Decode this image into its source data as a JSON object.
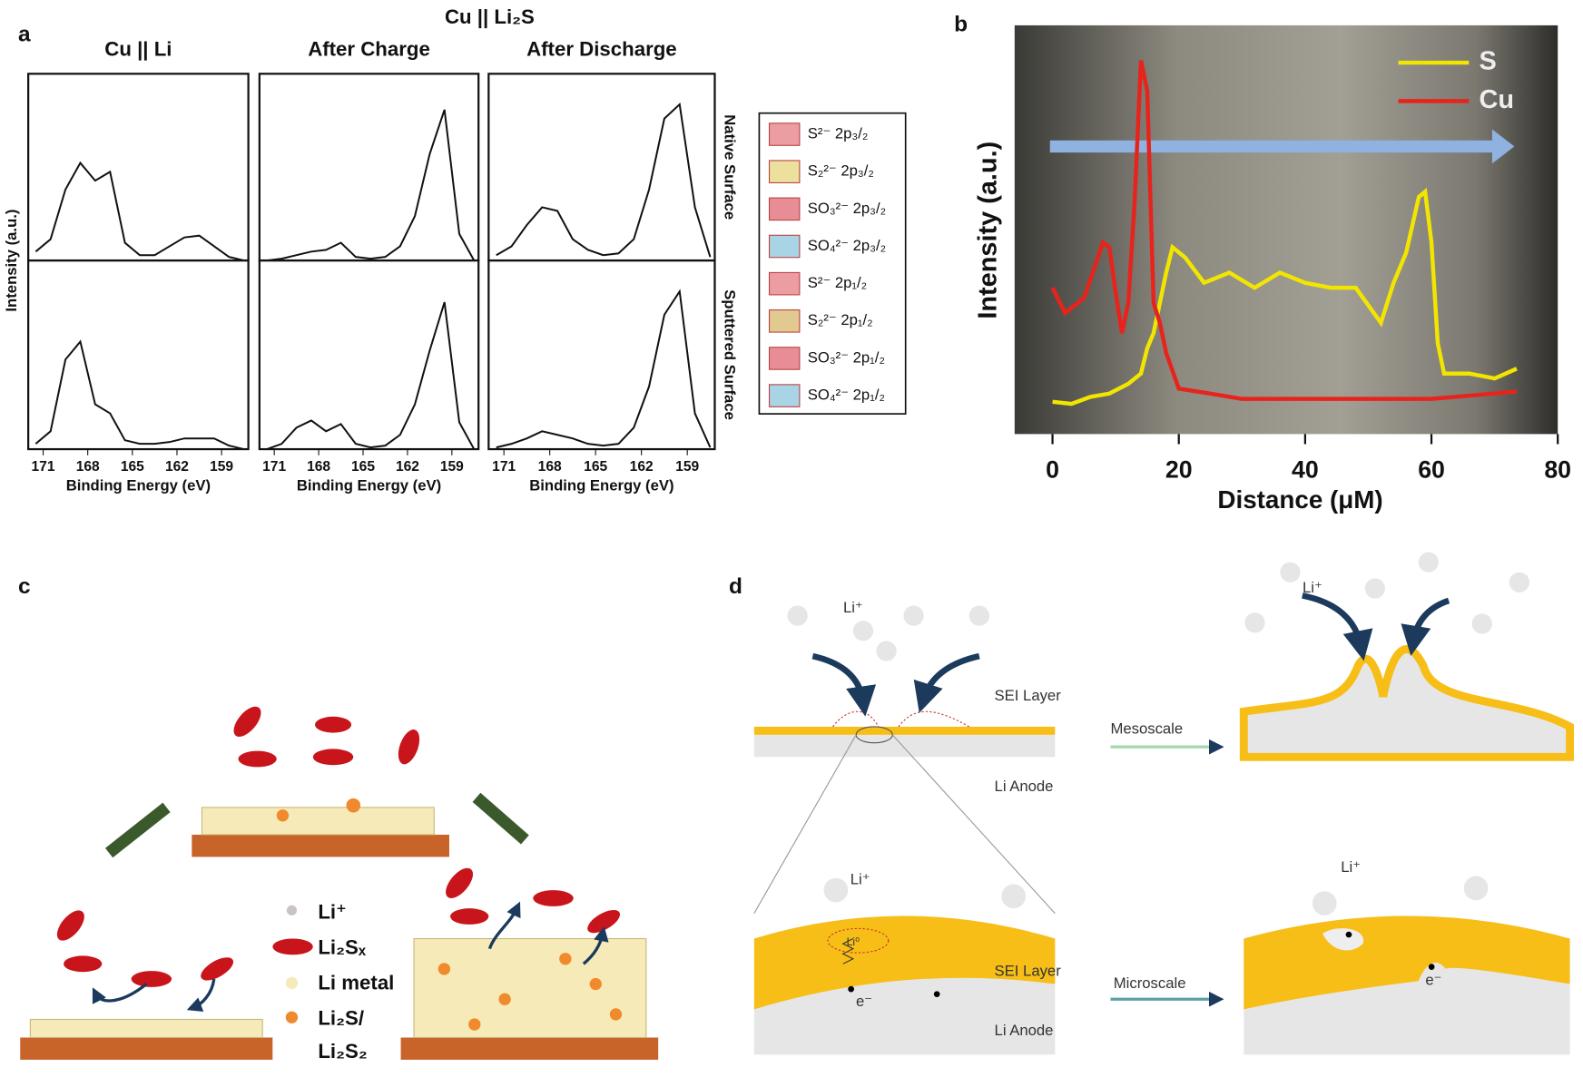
{
  "panel_labels": [
    "a",
    "b",
    "c",
    "d"
  ],
  "chart_data": [
    {
      "type": "line",
      "supertitle": "Cu || Li₂S",
      "column_titles": [
        "Cu || Li",
        "After Charge",
        "After Discharge"
      ],
      "row_labels": [
        "Native Surface",
        "Sputtered Surface"
      ],
      "x_label": "Binding Energy (eV)",
      "y_label": "Intensity (a.u.)",
      "xlim": [
        172,
        157.2
      ],
      "xticks": [
        171,
        168,
        165,
        162,
        159
      ],
      "ylim": [
        0,
        100
      ],
      "x": [
        171.5,
        170.5,
        169.5,
        168.5,
        167.5,
        166.5,
        165.5,
        164.5,
        163.5,
        162.5,
        161.5,
        160.5,
        159.5,
        158.5,
        157.5
      ],
      "series": [
        {
          "color": "#111111",
          "values": [
            5,
            12,
            40,
            55,
            45,
            50,
            10,
            3,
            3,
            8,
            13,
            14,
            8,
            2,
            0
          ]
        },
        {
          "color": "#111111",
          "values": [
            0,
            1,
            3,
            5,
            6,
            10,
            2,
            1,
            2,
            8,
            25,
            60,
            85,
            15,
            0
          ]
        },
        {
          "color": "#111111",
          "values": [
            3,
            8,
            20,
            30,
            28,
            12,
            6,
            3,
            4,
            12,
            40,
            80,
            88,
            30,
            2
          ]
        },
        {
          "color": "#111111",
          "values": [
            3,
            10,
            50,
            60,
            25,
            20,
            5,
            3,
            3,
            4,
            6,
            6,
            6,
            2,
            0
          ]
        },
        {
          "color": "#111111",
          "values": [
            0,
            3,
            12,
            16,
            10,
            14,
            3,
            1,
            2,
            8,
            25,
            55,
            82,
            15,
            0
          ]
        },
        {
          "color": "#111111",
          "values": [
            1,
            3,
            6,
            10,
            8,
            6,
            3,
            2,
            3,
            12,
            35,
            75,
            88,
            20,
            1
          ]
        }
      ],
      "legend": [
        {
          "name": "S²⁻ 2p₃/₂",
          "color": "#ec9da2"
        },
        {
          "name": "S₂²⁻ 2p₃/₂",
          "color": "#ece09c"
        },
        {
          "name": "SO₃²⁻ 2p₃/₂",
          "color": "#e88d95"
        },
        {
          "name": "SO₄²⁻ 2p₃/₂",
          "color": "#a9d4e6"
        },
        {
          "name": "S²⁻ 2p₁/₂",
          "color": "#ec9da2"
        },
        {
          "name": "S₂²⁻ 2p₁/₂",
          "color": "#e2c98f"
        },
        {
          "name": "SO₃²⁻ 2p₁/₂",
          "color": "#e88d95"
        },
        {
          "name": "SO₄²⁻ 2p₁/₂",
          "color": "#a9d4e6"
        }
      ]
    },
    {
      "type": "line",
      "x_label": "Distance (μM)",
      "y_label": "Intensity (a.u.)",
      "xlim": [
        -6,
        80
      ],
      "xticks": [
        0,
        20,
        40,
        60,
        80
      ],
      "ylim": [
        0,
        100
      ],
      "series": [
        {
          "name": "S",
          "color": "#f2e600",
          "x": [
            0,
            3,
            6,
            9,
            12,
            14,
            15,
            16,
            17,
            18,
            19,
            21,
            24,
            28,
            32,
            36,
            40,
            44,
            48,
            52,
            54,
            56,
            58,
            59,
            60,
            61,
            62,
            66,
            70,
            73.5
          ],
          "values": [
            7.9,
            7.4,
            9.1,
            9.9,
            12.3,
            14.8,
            21,
            24.7,
            32.1,
            39.5,
            45.7,
            43.2,
            37,
            39.5,
            35.8,
            39.5,
            37,
            35.8,
            35.8,
            27.2,
            37,
            44.4,
            58,
            59.3,
            46.9,
            22.2,
            14.8,
            14.8,
            13.6,
            16
          ]
        },
        {
          "name": "Cu",
          "color": "#e8231c",
          "x": [
            0,
            2,
            5,
            8,
            9,
            10,
            11,
            12,
            13,
            14,
            15,
            16,
            17,
            18,
            20,
            25,
            30,
            40,
            50,
            60,
            66,
            73.5
          ],
          "values": [
            35.8,
            29.6,
            33.3,
            46.9,
            45.7,
            34.6,
            24.7,
            32.1,
            56.8,
            91.4,
            84,
            32.1,
            27.2,
            19.8,
            11.1,
            9.9,
            8.6,
            8.6,
            8.6,
            8.6,
            9.4,
            10.4
          ]
        }
      ]
    }
  ],
  "diagram_c": {
    "legend": [
      "Li⁺",
      "Li₂Sₓ",
      "Li metal",
      "Li₂S/",
      "Li₂S₂"
    ]
  },
  "diagram_d": {
    "top_left": {
      "ion": "Li⁺",
      "layer": "SEI Layer",
      "anode": "Li Anode"
    },
    "mesoscale": "Mesoscale",
    "top_right_ion": "Li⁺",
    "bottom_left": {
      "ion": "Li⁺",
      "atom": "Li⁰",
      "layer": "SEI Layer",
      "electron": "e⁻",
      "anode": "Li Anode"
    },
    "microscale": "Microscale",
    "bottom_right": {
      "ion": "Li⁺",
      "electron": "e⁻"
    }
  }
}
